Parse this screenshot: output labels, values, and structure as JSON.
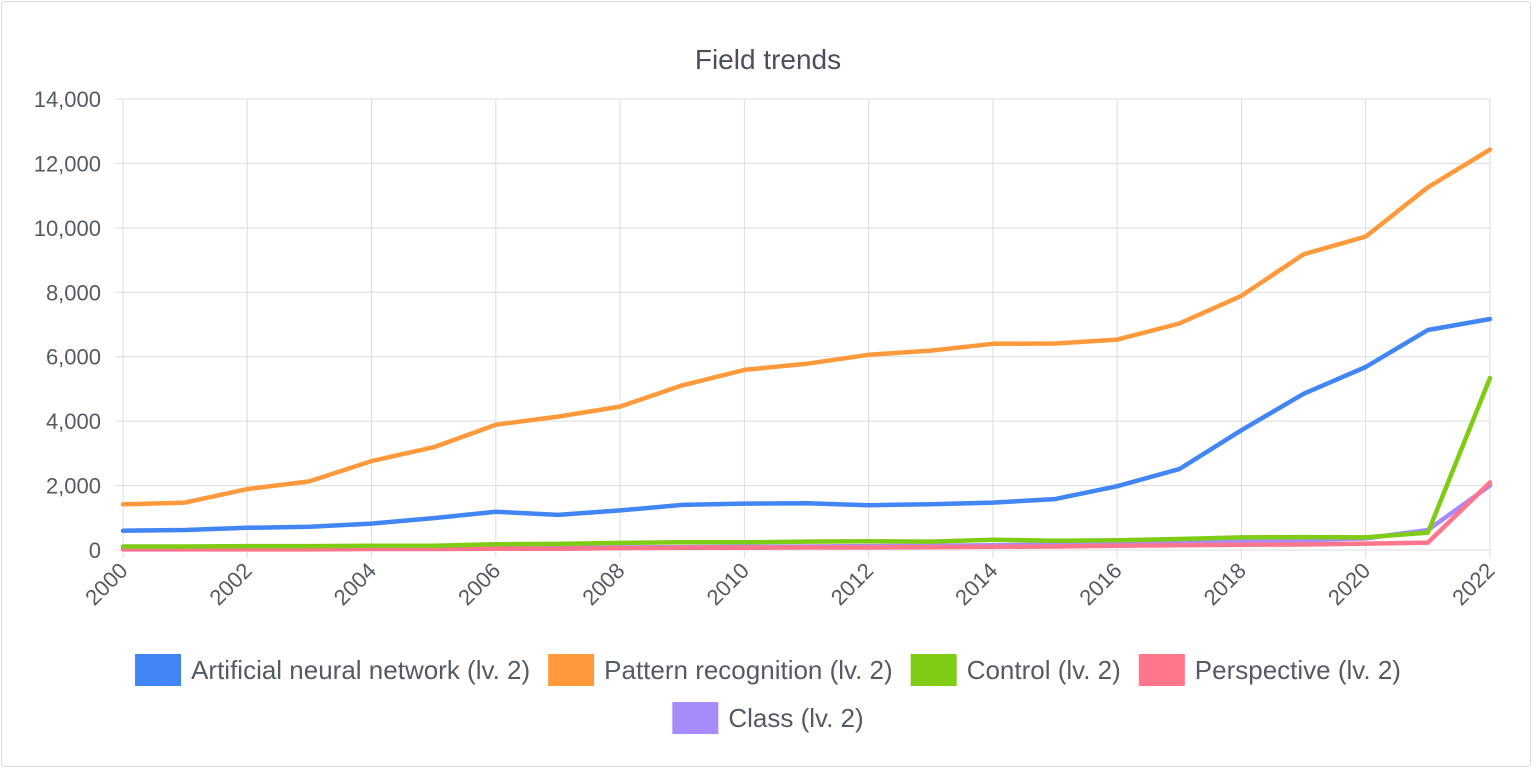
{
  "chart_data": {
    "type": "line",
    "title": "Field trends",
    "xlabel": "",
    "ylabel": "",
    "x": [
      2000,
      2001,
      2002,
      2003,
      2004,
      2005,
      2006,
      2007,
      2008,
      2009,
      2010,
      2011,
      2012,
      2013,
      2014,
      2015,
      2016,
      2017,
      2018,
      2019,
      2020,
      2021,
      2022
    ],
    "xticks": [
      "2000",
      "2002",
      "2004",
      "2006",
      "2008",
      "2010",
      "2012",
      "2014",
      "2016",
      "2018",
      "2020",
      "2022"
    ],
    "yticks": [
      "0",
      "2,000",
      "4,000",
      "6,000",
      "8,000",
      "10,000",
      "12,000",
      "14,000"
    ],
    "ylim": [
      0,
      14000
    ],
    "xlim": [
      2000,
      2022
    ],
    "grid": true,
    "legend_position": "bottom",
    "series": [
      {
        "name": "Artificial neural network (lv. 2)",
        "color": "#4285f4",
        "values": [
          600,
          620,
          690,
          720,
          820,
          990,
          1190,
          1090,
          1230,
          1400,
          1440,
          1450,
          1390,
          1420,
          1470,
          1580,
          1980,
          2510,
          3720,
          4850,
          5680,
          6830,
          7170
        ]
      },
      {
        "name": "Pattern recognition (lv. 2)",
        "color": "#ff9a3c",
        "values": [
          1420,
          1470,
          1890,
          2130,
          2760,
          3190,
          3890,
          4140,
          4450,
          5110,
          5590,
          5780,
          6060,
          6190,
          6400,
          6410,
          6530,
          7030,
          7890,
          9180,
          9730,
          11260,
          12430
        ]
      },
      {
        "name": "Control (lv. 2)",
        "color": "#7fcc14",
        "values": [
          110,
          110,
          120,
          120,
          130,
          130,
          180,
          190,
          220,
          240,
          240,
          260,
          270,
          260,
          320,
          290,
          300,
          340,
          390,
          400,
          390,
          540,
          5340
        ]
      },
      {
        "name": "Perspective (lv. 2)",
        "color": "#ff758c",
        "values": [
          20,
          20,
          20,
          20,
          30,
          30,
          40,
          40,
          60,
          70,
          70,
          80,
          80,
          90,
          100,
          110,
          130,
          150,
          160,
          170,
          200,
          230,
          2100
        ]
      },
      {
        "name": "Class (lv. 2)",
        "color": "#a78bfa",
        "values": [
          30,
          30,
          40,
          40,
          50,
          50,
          60,
          60,
          80,
          90,
          100,
          110,
          120,
          130,
          150,
          170,
          190,
          220,
          260,
          300,
          360,
          620,
          2000
        ]
      }
    ]
  }
}
